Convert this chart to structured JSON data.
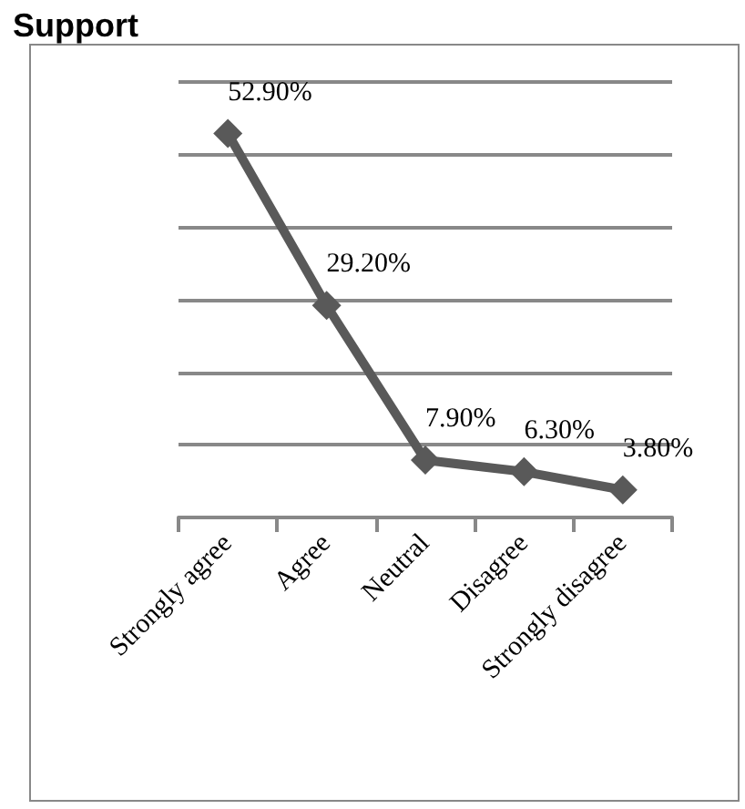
{
  "chart_data": {
    "type": "line",
    "title": "Support",
    "categories": [
      "Strongly agree",
      "Agree",
      "Neutral",
      "Disagree",
      "Strongly disagree"
    ],
    "series": [
      {
        "color": "#595959",
        "values": [
          52.9,
          29.2,
          7.9,
          6.3,
          3.8
        ],
        "value_labels": [
          "52.90%",
          "29.20%",
          "7.90%",
          "6.30%",
          "3.80%"
        ]
      }
    ],
    "ylim": [
      0,
      60
    ],
    "yticks": [
      {
        "value": 0,
        "label": null
      },
      {
        "value": 10,
        "label": null
      },
      {
        "value": 20,
        "label": null
      },
      {
        "value": 30,
        "label": null
      },
      {
        "value": 40,
        "label": null
      },
      {
        "value": 50,
        "label": null
      },
      {
        "value": 60,
        "label": null
      }
    ],
    "grid": "y",
    "tick_labels": "x",
    "marker": "diamond",
    "line_style": "solid"
  }
}
